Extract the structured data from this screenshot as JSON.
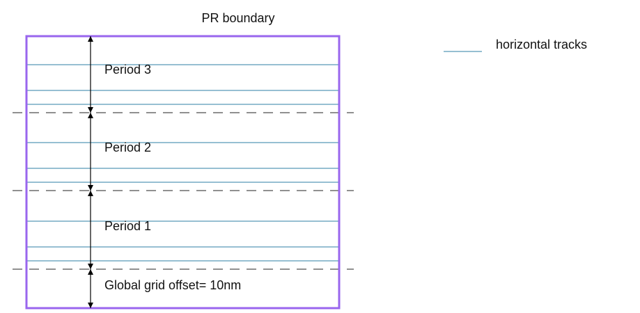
{
  "title": "PR boundary",
  "legend": {
    "label": "horizontal tracks"
  },
  "periods": [
    {
      "label": "Period 3"
    },
    {
      "label": "Period 2"
    },
    {
      "label": "Period 1"
    }
  ],
  "offset": {
    "label": "Global grid offset= 10nm"
  },
  "colors": {
    "boundary": "#9966ee",
    "track": "#2e7fa6",
    "dashed": "#222222",
    "arrow": "#000000"
  }
}
